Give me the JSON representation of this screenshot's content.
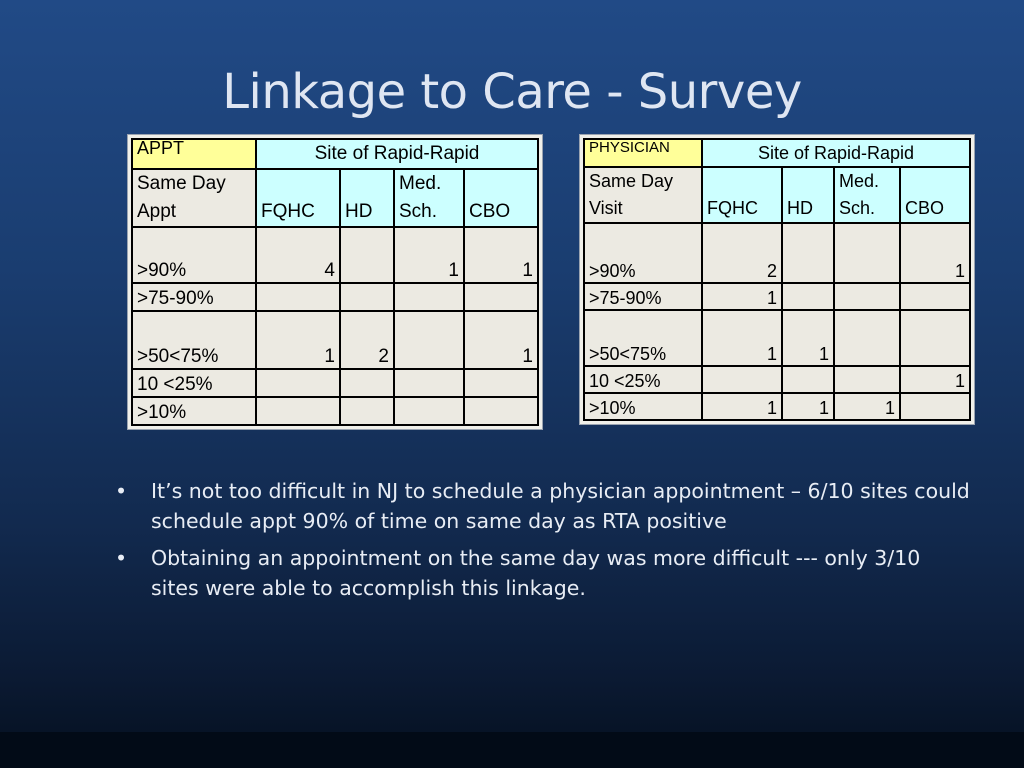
{
  "title": "Linkage to Care - Survey",
  "table_appt": {
    "corner": "APPT",
    "site_header": "Site of Rapid-Rapid",
    "row_header_line1": "Same Day",
    "row_header_line2": "Appt",
    "col_fqhc": "FQHC",
    "col_hd": "HD",
    "col_med_line1": "Med.",
    "col_med_line2": "Sch.",
    "col_cbo": "CBO",
    "rows": [
      {
        "label": ">90%",
        "fqhc": "4",
        "hd": "",
        "med": "1",
        "cbo": "1"
      },
      {
        "label": ">75-90%",
        "fqhc": "",
        "hd": "",
        "med": "",
        "cbo": ""
      },
      {
        "label": ">50<75%",
        "fqhc": "1",
        "hd": "2",
        "med": "",
        "cbo": "1"
      },
      {
        "label": "10 <25%",
        "fqhc": "",
        "hd": "",
        "med": "",
        "cbo": ""
      },
      {
        "label": ">10%",
        "fqhc": "",
        "hd": "",
        "med": "",
        "cbo": ""
      }
    ]
  },
  "table_physician": {
    "corner": "PHYSICIAN",
    "site_header": "Site of Rapid-Rapid",
    "row_header_line1": "Same Day",
    "row_header_line2": "Visit",
    "col_fqhc": "FQHC",
    "col_hd": "HD",
    "col_med_line1": "Med.",
    "col_med_line2": "Sch.",
    "col_cbo": "CBO",
    "rows": [
      {
        "label": ">90%",
        "fqhc": "2",
        "hd": "",
        "med": "",
        "cbo": "1"
      },
      {
        "label": ">75-90%",
        "fqhc": "1",
        "hd": "",
        "med": "",
        "cbo": ""
      },
      {
        "label": ">50<75%",
        "fqhc": "1",
        "hd": "1",
        "med": "",
        "cbo": ""
      },
      {
        "label": "10 <25%",
        "fqhc": "",
        "hd": "",
        "med": "",
        "cbo": "1"
      },
      {
        "label": ">10%",
        "fqhc": "1",
        "hd": "1",
        "med": "1",
        "cbo": ""
      }
    ]
  },
  "bullets": [
    "It’s not too difficult in NJ to schedule a physician appointment – 6/10 sites could schedule appt 90% of time on same day as RTA positive",
    "Obtaining an appointment on the same day was more difficult --- only 3/10 sites were able to accomplish this linkage."
  ],
  "bullet_glyph": "•"
}
